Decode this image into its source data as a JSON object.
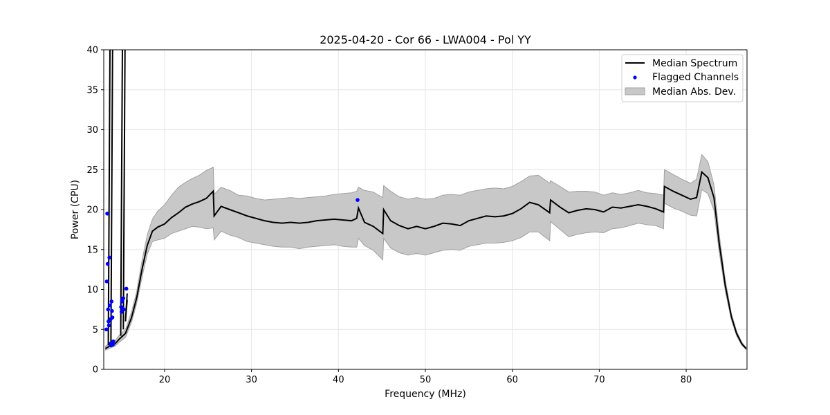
{
  "chart_data": {
    "type": "line",
    "title": "2025-04-20 - Cor 66 - LWA004 - Pol YY",
    "xlabel": "Frequency (MHz)",
    "ylabel": "Power (CPU)",
    "xlim": [
      13.0,
      87.0
    ],
    "ylim": [
      0,
      40
    ],
    "xticks": [
      20,
      30,
      40,
      50,
      60,
      70,
      80
    ],
    "yticks": [
      0,
      5,
      10,
      15,
      20,
      25,
      30,
      35,
      40
    ],
    "grid": true,
    "legend": {
      "position": "top-right",
      "entries": [
        "Median Spectrum",
        "Flagged Channels",
        "Median Abs. Dev."
      ]
    },
    "colors": {
      "median": "#000000",
      "flagged": "#0000ff",
      "mad_fill": "#c8c8c8",
      "mad_edge": "#a0a0a0"
    },
    "series": [
      {
        "name": "Median Spectrum",
        "x": [
          13.2,
          13.8,
          14.3,
          14.8,
          15.5,
          16.2,
          16.8,
          17.4,
          18.0,
          18.6,
          19.2,
          20.0,
          20.8,
          21.6,
          22.4,
          23.2,
          24.0,
          24.8,
          25.6,
          25.7,
          26.5,
          27.5,
          28.5,
          29.5,
          30.5,
          31.5,
          32.5,
          33.5,
          34.5,
          35.5,
          36.5,
          37.5,
          38.5,
          39.5,
          40.5,
          41.5,
          42.1,
          42.3,
          43.0,
          44.0,
          45.1,
          45.2,
          46.0,
          47.0,
          48.0,
          49.0,
          50.0,
          51.0,
          52.0,
          53.0,
          54.0,
          55.0,
          56.0,
          57.0,
          58.0,
          59.0,
          60.0,
          61.0,
          62.0,
          63.0,
          64.3,
          64.4,
          65.5,
          66.5,
          67.5,
          68.5,
          69.5,
          70.5,
          71.5,
          72.5,
          73.5,
          74.5,
          75.5,
          76.5,
          77.4,
          77.5,
          78.5,
          79.5,
          80.5,
          81.2,
          81.8,
          82.5,
          83.2,
          83.8,
          84.5,
          85.2,
          85.8,
          86.4,
          86.9
        ],
        "values": [
          2.6,
          3.0,
          3.2,
          3.8,
          4.5,
          6.5,
          9.0,
          12.5,
          15.5,
          17.3,
          17.8,
          18.2,
          19.0,
          19.6,
          20.3,
          20.7,
          21.0,
          21.4,
          22.3,
          19.2,
          20.4,
          20.0,
          19.6,
          19.2,
          18.9,
          18.6,
          18.4,
          18.3,
          18.4,
          18.3,
          18.4,
          18.6,
          18.7,
          18.8,
          18.7,
          18.6,
          18.9,
          20.2,
          18.4,
          17.9,
          17.0,
          20.0,
          18.6,
          18.0,
          17.6,
          17.9,
          17.6,
          17.9,
          18.3,
          18.2,
          18.0,
          18.6,
          18.9,
          19.2,
          19.1,
          19.2,
          19.5,
          20.1,
          20.9,
          20.6,
          19.6,
          21.2,
          20.3,
          19.6,
          19.9,
          20.1,
          20.0,
          19.7,
          20.3,
          20.2,
          20.4,
          20.6,
          20.4,
          20.1,
          19.7,
          22.9,
          22.3,
          21.8,
          21.3,
          21.5,
          24.7,
          24.0,
          21.5,
          15.8,
          10.5,
          6.6,
          4.5,
          3.2,
          2.6
        ]
      },
      {
        "name": "Median Abs. Dev.",
        "x": [
          13.2,
          13.8,
          14.3,
          14.8,
          15.5,
          16.2,
          16.8,
          17.4,
          18.0,
          18.6,
          19.2,
          20.0,
          20.8,
          21.6,
          22.4,
          23.2,
          24.0,
          24.8,
          25.6,
          25.7,
          26.5,
          27.5,
          28.5,
          29.5,
          30.5,
          31.5,
          32.5,
          33.5,
          34.5,
          35.5,
          36.5,
          37.5,
          38.5,
          39.5,
          40.5,
          41.5,
          42.1,
          42.3,
          43.0,
          44.0,
          45.1,
          45.2,
          46.0,
          47.0,
          48.0,
          49.0,
          50.0,
          51.0,
          52.0,
          53.0,
          54.0,
          55.0,
          56.0,
          57.0,
          58.0,
          59.0,
          60.0,
          61.0,
          62.0,
          63.0,
          64.3,
          64.4,
          65.5,
          66.5,
          67.5,
          68.5,
          69.5,
          70.5,
          71.5,
          72.5,
          73.5,
          74.5,
          75.5,
          76.5,
          77.4,
          77.5,
          78.5,
          79.5,
          80.5,
          81.2,
          81.8,
          82.5,
          83.2,
          83.8,
          84.5,
          85.2,
          85.8,
          86.4,
          86.9
        ],
        "upper": [
          2.9,
          3.4,
          3.6,
          4.3,
          5.0,
          7.2,
          9.8,
          13.6,
          16.8,
          18.8,
          19.8,
          20.6,
          21.8,
          22.8,
          23.4,
          23.9,
          24.3,
          24.9,
          25.3,
          21.9,
          22.8,
          22.4,
          21.8,
          21.7,
          21.4,
          21.2,
          21.3,
          21.4,
          21.5,
          21.4,
          21.5,
          21.6,
          21.7,
          21.9,
          22.0,
          22.1,
          22.3,
          22.8,
          22.4,
          22.2,
          21.5,
          23.0,
          22.3,
          21.6,
          21.3,
          21.5,
          21.3,
          21.4,
          21.8,
          21.9,
          21.8,
          22.2,
          22.4,
          22.6,
          22.7,
          22.6,
          22.9,
          23.5,
          24.2,
          24.3,
          23.3,
          23.6,
          22.9,
          22.2,
          22.3,
          22.3,
          22.2,
          21.8,
          22.1,
          21.9,
          22.1,
          22.4,
          22.1,
          22.0,
          21.8,
          25.0,
          24.4,
          23.8,
          23.3,
          23.8,
          26.9,
          26.0,
          23.1,
          16.9,
          11.2,
          7.0,
          4.8,
          3.4,
          2.7
        ],
        "lower": [
          2.4,
          2.7,
          2.9,
          3.4,
          4.0,
          5.9,
          8.3,
          11.5,
          14.4,
          16.0,
          16.2,
          16.4,
          17.0,
          17.3,
          17.6,
          17.9,
          17.8,
          17.6,
          17.7,
          16.2,
          17.3,
          16.8,
          16.5,
          16.0,
          15.8,
          15.6,
          15.4,
          15.3,
          15.3,
          15.1,
          15.3,
          15.4,
          15.5,
          15.6,
          15.4,
          15.3,
          15.3,
          16.4,
          15.5,
          14.9,
          13.7,
          16.4,
          15.2,
          14.6,
          14.3,
          14.5,
          14.3,
          14.6,
          14.9,
          15.0,
          14.9,
          15.4,
          15.6,
          15.8,
          15.8,
          15.9,
          16.1,
          16.5,
          17.2,
          17.2,
          16.1,
          18.5,
          17.5,
          16.6,
          16.9,
          17.1,
          17.2,
          17.1,
          17.6,
          17.7,
          18.0,
          18.3,
          18.1,
          18.0,
          17.6,
          20.8,
          20.2,
          19.8,
          19.3,
          19.2,
          22.5,
          22.0,
          19.9,
          14.7,
          9.8,
          6.2,
          4.2,
          3.0,
          2.5
        ]
      },
      {
        "name": "Flagged Channels",
        "x": [
          13.3,
          13.35,
          13.4,
          13.45,
          13.5,
          13.55,
          13.6,
          13.65,
          13.7,
          13.75,
          13.8,
          13.85,
          13.9,
          13.95,
          14.0,
          14.05,
          14.1,
          15.0,
          15.05,
          15.1,
          15.15,
          15.2,
          15.25,
          15.3,
          15.6,
          42.2
        ],
        "values": [
          5.0,
          11.0,
          19.5,
          13.2,
          7.5,
          6.0,
          5.5,
          14.0,
          8.0,
          3.2,
          6.3,
          3.0,
          8.5,
          7.3,
          6.5,
          3.1,
          3.5,
          7.8,
          7.2,
          8.5,
          8.8,
          7.6,
          8.9,
          7.5,
          10.1,
          21.2
        ]
      },
      {
        "name": "RFI Spikes",
        "spikes": [
          {
            "x": 13.62,
            "values": [
              3.0,
              40.0,
              3.5,
              40.0,
              4.0,
              40.0,
              3.2,
              40.0,
              3.6
            ]
          },
          {
            "x": 13.92,
            "values": [
              3.3,
              40.0,
              3.0,
              40.0,
              3.4,
              40.0,
              3.1
            ]
          },
          {
            "x": 15.05,
            "values": [
              4.2,
              40.0,
              5.0,
              40.0,
              4.4,
              40.0,
              5.5
            ]
          },
          {
            "x": 15.35,
            "values": [
              5.0,
              40.0,
              6.0,
              40.0,
              5.2
            ]
          },
          {
            "x": 15.6,
            "values": [
              6.0,
              9.5,
              6.2,
              8.7,
              6.4
            ]
          }
        ]
      }
    ]
  }
}
